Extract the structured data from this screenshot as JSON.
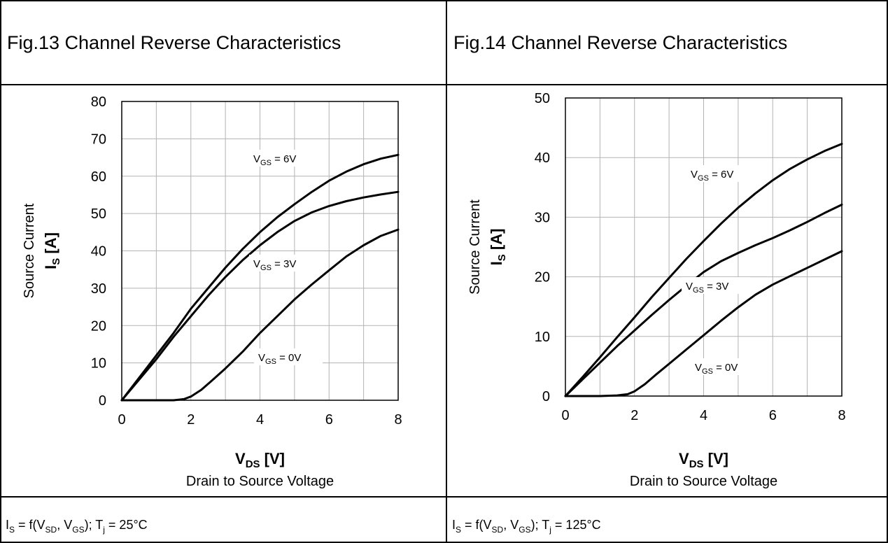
{
  "panels": [
    {
      "title": "Fig.13  Channel Reverse Characteristics",
      "footer": {
        "lhs": "I",
        "lhs_sub": "S",
        "mid1": " = f(V",
        "sub1": "SD",
        "mid2": ", V",
        "sub2": "GS",
        "mid3": "); T",
        "sub3": "j",
        "rest": " = 25°C"
      }
    },
    {
      "title": "Fig.14  Channel Reverse Characteristics",
      "footer": {
        "lhs": "I",
        "lhs_sub": "S",
        "mid1": " = f(V",
        "sub1": "SD",
        "mid2": ", V",
        "sub2": "GS",
        "mid3": "); T",
        "sub3": "j",
        "rest": " = 125°C"
      }
    }
  ],
  "chart_data": [
    {
      "type": "line",
      "xlabel": {
        "main": "V",
        "sub": "DS",
        "unit": " [V]"
      },
      "xlabel_desc": "Drain to Source Voltage",
      "ylabel": {
        "main": "I",
        "sub": "S",
        "unit": " [A]"
      },
      "ylabel_desc": "Source Current",
      "xlim": [
        0,
        8
      ],
      "ylim": [
        0,
        80
      ],
      "xticks": [
        0,
        2,
        4,
        6,
        8
      ],
      "yticks": [
        0,
        10,
        20,
        30,
        40,
        50,
        60,
        70,
        80
      ],
      "grid": true,
      "series": [
        {
          "name": "V_GS = 6V",
          "label": {
            "main": "V",
            "sub": "GS",
            "rest": " = 6V"
          },
          "x": [
            0,
            0.5,
            1,
            1.5,
            2,
            2.5,
            3,
            3.5,
            4,
            4.5,
            5,
            5.5,
            6,
            6.5,
            7,
            7.5,
            8
          ],
          "y": [
            0,
            6,
            12,
            18,
            24.5,
            30,
            35.5,
            40.5,
            45,
            49,
            52.5,
            55.8,
            58.8,
            61.2,
            63.2,
            64.7,
            65.7
          ]
        },
        {
          "name": "V_GS = 3V",
          "label": {
            "main": "V",
            "sub": "GS",
            "rest": " = 3V"
          },
          "x": [
            0,
            0.5,
            1,
            1.5,
            2,
            2.5,
            3,
            3.5,
            4,
            4.5,
            5,
            5.5,
            6,
            6.5,
            7,
            7.5,
            8
          ],
          "y": [
            0,
            5.5,
            11,
            17,
            22.5,
            28,
            33,
            37.5,
            41.5,
            45,
            48,
            50.3,
            52,
            53.3,
            54.3,
            55.1,
            55.8
          ]
        },
        {
          "name": "V_GS = 0V",
          "label": {
            "main": "V",
            "sub": "GS",
            "rest": " = 0V"
          },
          "x": [
            0,
            0.5,
            1,
            1.5,
            1.8,
            2,
            2.3,
            2.6,
            3,
            3.5,
            4,
            4.5,
            5,
            5.5,
            6,
            6.5,
            7,
            7.5,
            8
          ],
          "y": [
            0,
            0,
            0,
            0,
            0.3,
            1,
            2.8,
            5.2,
            8.5,
            13,
            18,
            22.5,
            27,
            31,
            34.8,
            38.5,
            41.5,
            44,
            45.7
          ]
        }
      ]
    },
    {
      "type": "line",
      "xlabel": {
        "main": "V",
        "sub": "DS",
        "unit": " [V]"
      },
      "xlabel_desc": "Drain to Source Voltage",
      "ylabel": {
        "main": "I",
        "sub": "S",
        "unit": " [A]"
      },
      "ylabel_desc": "Source Current",
      "xlim": [
        0,
        8
      ],
      "ylim": [
        0,
        50
      ],
      "xticks": [
        0,
        2,
        4,
        6,
        8
      ],
      "yticks": [
        0,
        10,
        20,
        30,
        40,
        50
      ],
      "grid": true,
      "series": [
        {
          "name": "V_GS = 6V",
          "label": {
            "main": "V",
            "sub": "GS",
            "rest": " = 6V"
          },
          "x": [
            0,
            0.5,
            1,
            1.5,
            2,
            2.5,
            3,
            3.5,
            4,
            4.5,
            5,
            5.5,
            6,
            6.5,
            7,
            7.5,
            8
          ],
          "y": [
            0,
            3.2,
            6.5,
            9.9,
            13.2,
            16.6,
            19.8,
            23,
            26,
            28.9,
            31.6,
            34,
            36.2,
            38.1,
            39.7,
            41.1,
            42.3
          ]
        },
        {
          "name": "V_GS = 3V",
          "label": {
            "main": "V",
            "sub": "GS",
            "rest": " = 3V"
          },
          "x": [
            0,
            0.5,
            1,
            1.5,
            2,
            2.5,
            3,
            3.5,
            4,
            4.5,
            5,
            5.5,
            6,
            6.5,
            7,
            7.5,
            8
          ],
          "y": [
            0,
            2.8,
            5.6,
            8.4,
            11,
            13.6,
            16.1,
            18.5,
            20.8,
            22.6,
            24,
            25.3,
            26.5,
            27.8,
            29.2,
            30.7,
            32.1
          ]
        },
        {
          "name": "V_GS = 0V",
          "label": {
            "main": "V",
            "sub": "GS",
            "rest": " = 0V"
          },
          "x": [
            0,
            0.5,
            1,
            1.5,
            1.8,
            2,
            2.3,
            2.6,
            3,
            3.5,
            4,
            4.5,
            5,
            5.5,
            6,
            6.5,
            7,
            7.5,
            8
          ],
          "y": [
            0,
            0,
            0,
            0.1,
            0.3,
            0.8,
            2,
            3.5,
            5.4,
            7.8,
            10.2,
            12.6,
            14.9,
            17,
            18.7,
            20.1,
            21.5,
            22.9,
            24.3
          ]
        }
      ]
    }
  ]
}
